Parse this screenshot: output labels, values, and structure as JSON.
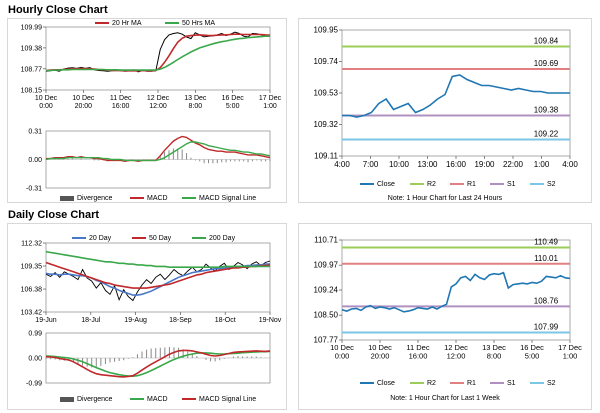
{
  "sections": {
    "hourly_title": "Hourly Close Chart",
    "daily_title": "Daily Close Chart"
  },
  "colors": {
    "close": "#1f77b4",
    "r2": "#9acd5a",
    "r1": "#e08080",
    "s1": "#b090c0",
    "s2": "#7cc6e6",
    "ma_short": "#c0282a",
    "ma_long": "#3aa84a",
    "price": "#000000",
    "ma20": "#4a78c8",
    "ma50": "#c0282a",
    "ma200": "#3aa84a",
    "macd_a": "#c0282a",
    "macd_b": "#3aa84a",
    "divergence": "#888888"
  },
  "chart_data": [
    {
      "id": "hourly_price_ma",
      "type": "line",
      "title": "Hourly Close Chart",
      "legend": [
        "20 Hr MA",
        "50 Hrs MA"
      ],
      "x_ticks": [
        "10 Dec\n0:00",
        "10 Dec\n20:00",
        "11 Dec\n16:00",
        "12 Dec\n12:00",
        "13 Dec\n8:00",
        "16 Dec\n5:00",
        "17 Dec\n1:00"
      ],
      "y_ticks": [
        "109.99",
        "109.38",
        "108.77",
        "108.15"
      ],
      "ylim": [
        108.15,
        109.99
      ],
      "series": [
        {
          "name": "Close",
          "values": [
            108.7,
            108.71,
            108.73,
            108.7,
            108.76,
            108.79,
            108.8,
            108.78,
            108.81,
            108.78,
            108.8,
            108.74,
            108.72,
            108.71,
            108.7,
            108.71,
            108.72,
            108.71,
            108.7,
            108.71,
            108.74,
            108.68,
            108.72,
            108.7,
            108.7,
            108.71,
            109.33,
            109.62,
            109.76,
            109.8,
            109.82,
            109.78,
            109.7,
            109.65,
            109.82,
            109.76,
            109.7,
            109.72,
            109.73,
            109.76,
            109.8,
            109.74,
            109.78,
            109.84,
            109.8,
            109.72,
            109.7,
            109.8,
            109.79,
            109.76,
            109.73,
            109.72
          ]
        },
        {
          "name": "20 Hr MA",
          "values": [
            108.72,
            108.73,
            108.74,
            108.74,
            108.75,
            108.76,
            108.77,
            108.77,
            108.78,
            108.77,
            108.77,
            108.76,
            108.75,
            108.74,
            108.73,
            108.72,
            108.72,
            108.72,
            108.71,
            108.71,
            108.71,
            108.71,
            108.72,
            108.71,
            108.71,
            108.72,
            108.8,
            108.96,
            109.15,
            109.36,
            109.55,
            109.66,
            109.72,
            109.74,
            109.75,
            109.76,
            109.75,
            109.74,
            109.74,
            109.75,
            109.76,
            109.76,
            109.77,
            109.78,
            109.78,
            109.77,
            109.77,
            109.77,
            109.77,
            109.77,
            109.76,
            109.75
          ]
        },
        {
          "name": "50 Hrs MA",
          "values": [
            108.72,
            108.72,
            108.73,
            108.73,
            108.74,
            108.74,
            108.75,
            108.75,
            108.75,
            108.75,
            108.75,
            108.75,
            108.75,
            108.75,
            108.74,
            108.74,
            108.74,
            108.73,
            108.73,
            108.73,
            108.73,
            108.73,
            108.73,
            108.73,
            108.73,
            108.73,
            108.76,
            108.81,
            108.88,
            108.96,
            109.04,
            109.12,
            109.19,
            109.26,
            109.32,
            109.38,
            109.42,
            109.46,
            109.5,
            109.53,
            109.56,
            109.58,
            109.61,
            109.63,
            109.65,
            109.66,
            109.68,
            109.69,
            109.7,
            109.71,
            109.72,
            109.72
          ]
        }
      ]
    },
    {
      "id": "hourly_macd",
      "type": "line",
      "legend": [
        "Divergence",
        "MACD",
        "MACD Signal Line"
      ],
      "y_ticks": [
        "0.31",
        "0.00",
        "-0.31"
      ],
      "ylim": [
        -0.31,
        0.31
      ],
      "series": [
        {
          "name": "MACD",
          "values": [
            0.01,
            0.01,
            0.02,
            0.02,
            0.02,
            0.03,
            0.03,
            0.02,
            0.03,
            0.02,
            0.02,
            0.01,
            0.01,
            0.0,
            -0.01,
            -0.01,
            -0.01,
            -0.01,
            -0.02,
            -0.01,
            -0.01,
            -0.02,
            -0.01,
            -0.01,
            -0.01,
            -0.01,
            0.04,
            0.1,
            0.15,
            0.2,
            0.23,
            0.25,
            0.24,
            0.21,
            0.18,
            0.16,
            0.13,
            0.11,
            0.1,
            0.09,
            0.09,
            0.08,
            0.08,
            0.08,
            0.07,
            0.06,
            0.05,
            0.05,
            0.05,
            0.04,
            0.03,
            0.02
          ]
        },
        {
          "name": "MACD Signal Line",
          "values": [
            0.0,
            0.01,
            0.01,
            0.01,
            0.01,
            0.02,
            0.02,
            0.02,
            0.02,
            0.02,
            0.02,
            0.02,
            0.02,
            0.01,
            0.01,
            0.0,
            0.0,
            0.0,
            -0.01,
            -0.01,
            -0.01,
            -0.01,
            -0.01,
            -0.01,
            -0.01,
            -0.01,
            0.0,
            0.02,
            0.05,
            0.08,
            0.11,
            0.14,
            0.17,
            0.19,
            0.19,
            0.18,
            0.17,
            0.15,
            0.14,
            0.13,
            0.12,
            0.11,
            0.1,
            0.1,
            0.09,
            0.08,
            0.08,
            0.07,
            0.06,
            0.06,
            0.05,
            0.04
          ]
        }
      ]
    },
    {
      "id": "hourly_pivots",
      "type": "line",
      "x_ticks": [
        "4:00",
        "7:00",
        "10:00",
        "13:00",
        "16:00",
        "19:00",
        "22:00",
        "1:00",
        "4:00"
      ],
      "y_ticks": [
        "109.95",
        "109.74",
        "109.53",
        "109.32",
        "109.11"
      ],
      "ylim": [
        109.11,
        109.95
      ],
      "levels": [
        {
          "name": "R2",
          "value": 109.84,
          "label": "109.84"
        },
        {
          "name": "R1",
          "value": 109.69,
          "label": "109.69"
        },
        {
          "name": "S1",
          "value": 109.38,
          "label": "109.38"
        },
        {
          "name": "S2",
          "value": 109.22,
          "label": "109.22"
        }
      ],
      "series": [
        {
          "name": "Close",
          "values": [
            109.38,
            109.38,
            109.37,
            109.38,
            109.4,
            109.46,
            109.49,
            109.42,
            109.44,
            109.46,
            109.4,
            109.42,
            109.45,
            109.49,
            109.52,
            109.64,
            109.65,
            109.62,
            109.6,
            109.58,
            109.58,
            109.57,
            109.56,
            109.55,
            109.56,
            109.55,
            109.54,
            109.54,
            109.53,
            109.53,
            109.53,
            109.53
          ]
        }
      ],
      "legend": [
        "Close",
        "R2",
        "R1",
        "S1",
        "S2"
      ],
      "note": "Note: 1 Hour Chart for Last 24 Hours"
    },
    {
      "id": "daily_price_ma",
      "type": "line",
      "title": "Daily Close Chart",
      "legend": [
        "20 Day",
        "50 Day",
        "200 Day"
      ],
      "x_ticks": [
        "19-Jun",
        "18-Jul",
        "19-Aug",
        "18-Sep",
        "18-Oct",
        "19-Nov"
      ],
      "y_ticks": [
        "112.32",
        "109.35",
        "106.38",
        "103.42"
      ],
      "ylim": [
        103.42,
        112.32
      ],
      "series": [
        {
          "name": "Price",
          "values": [
            108.3,
            108.0,
            108.5,
            107.9,
            108.6,
            108.3,
            108.0,
            107.6,
            108.9,
            107.8,
            107.4,
            106.5,
            107.2,
            106.2,
            105.7,
            106.8,
            105.0,
            106.3,
            105.4,
            104.9,
            106.0,
            106.9,
            107.6,
            107.1,
            107.9,
            108.3,
            107.6,
            108.2,
            108.9,
            108.4,
            108.1,
            108.7,
            109.2,
            108.6,
            108.9,
            109.6,
            109.1,
            108.7,
            109.3,
            109.7,
            108.9,
            109.3,
            109.8,
            109.5,
            109.0,
            109.6,
            109.9,
            109.4,
            109.8,
            110.0
          ]
        },
        {
          "name": "20 Day",
          "values": [
            108.4,
            108.3,
            108.3,
            108.2,
            108.3,
            108.3,
            108.2,
            108.1,
            108.1,
            108.0,
            107.8,
            107.5,
            107.3,
            107.0,
            106.7,
            106.5,
            106.2,
            106.0,
            105.8,
            105.6,
            105.6,
            105.7,
            105.9,
            106.1,
            106.4,
            106.7,
            107.0,
            107.3,
            107.6,
            107.9,
            108.1,
            108.3,
            108.5,
            108.6,
            108.7,
            108.8,
            108.9,
            109.0,
            109.0,
            109.1,
            109.2,
            109.2,
            109.3,
            109.3,
            109.4,
            109.4,
            109.5,
            109.5,
            109.6,
            109.6
          ]
        },
        {
          "name": "50 Day",
          "values": [
            109.8,
            109.6,
            109.4,
            109.2,
            109.0,
            108.8,
            108.6,
            108.4,
            108.2,
            108.0,
            107.8,
            107.6,
            107.4,
            107.2,
            107.1,
            106.9,
            106.8,
            106.7,
            106.6,
            106.5,
            106.5,
            106.5,
            106.5,
            106.6,
            106.7,
            106.8,
            106.9,
            107.0,
            107.2,
            107.4,
            107.6,
            107.8,
            108.0,
            108.2,
            108.3,
            108.5,
            108.6,
            108.7,
            108.8,
            108.9,
            109.0,
            109.1,
            109.1,
            109.2,
            109.2,
            109.3,
            109.3,
            109.4,
            109.4,
            109.5
          ]
        },
        {
          "name": "200 Day",
          "values": [
            111.2,
            111.1,
            111.0,
            110.9,
            110.8,
            110.7,
            110.6,
            110.5,
            110.4,
            110.3,
            110.2,
            110.1,
            110.0,
            109.9,
            109.9,
            109.8,
            109.7,
            109.7,
            109.6,
            109.6,
            109.5,
            109.5,
            109.4,
            109.4,
            109.3,
            109.3,
            109.3,
            109.2,
            109.2,
            109.2,
            109.2,
            109.2,
            109.2,
            109.2,
            109.2,
            109.2,
            109.2,
            109.2,
            109.2,
            109.3,
            109.3,
            109.3,
            109.3,
            109.3,
            109.3,
            109.3,
            109.3,
            109.3,
            109.3,
            109.3
          ]
        }
      ]
    },
    {
      "id": "daily_macd",
      "type": "line",
      "legend": [
        "Divergence",
        "MACD",
        "MACD Signal Line"
      ],
      "y_ticks": [
        "0.99",
        "0.00",
        "-0.99"
      ],
      "ylim": [
        -0.99,
        0.99
      ],
      "series": [
        {
          "name": "MACD",
          "values": [
            0.05,
            0.04,
            0.02,
            -0.02,
            -0.05,
            -0.08,
            -0.15,
            -0.25,
            -0.35,
            -0.45,
            -0.55,
            -0.62,
            -0.66,
            -0.68,
            -0.7,
            -0.72,
            -0.74,
            -0.75,
            -0.73,
            -0.7,
            -0.6,
            -0.48,
            -0.36,
            -0.25,
            -0.15,
            -0.05,
            0.05,
            0.15,
            0.22,
            0.28,
            0.3,
            0.3,
            0.28,
            0.24,
            0.2,
            0.15,
            0.1,
            0.08,
            0.1,
            0.14,
            0.18,
            0.22,
            0.24,
            0.25,
            0.26,
            0.27,
            0.28,
            0.27,
            0.26,
            0.28
          ]
        },
        {
          "name": "MACD Signal Line",
          "values": [
            0.08,
            0.07,
            0.06,
            0.04,
            0.02,
            0.0,
            -0.04,
            -0.09,
            -0.15,
            -0.22,
            -0.3,
            -0.38,
            -0.45,
            -0.52,
            -0.58,
            -0.62,
            -0.66,
            -0.69,
            -0.71,
            -0.72,
            -0.7,
            -0.65,
            -0.58,
            -0.5,
            -0.41,
            -0.32,
            -0.23,
            -0.14,
            -0.06,
            0.01,
            0.07,
            0.12,
            0.16,
            0.19,
            0.2,
            0.2,
            0.19,
            0.17,
            0.16,
            0.16,
            0.17,
            0.18,
            0.19,
            0.21,
            0.22,
            0.23,
            0.24,
            0.25,
            0.25,
            0.26
          ]
        }
      ]
    },
    {
      "id": "daily_pivots",
      "type": "line",
      "x_ticks": [
        "10 Dec\n0:00",
        "10 Dec\n20:00",
        "11 Dec\n16:00",
        "12 Dec\n12:00",
        "13 Dec\n8:00",
        "16 Dec\n5:00",
        "17 Dec\n1:00"
      ],
      "y_ticks": [
        "110.71",
        "109.97",
        "109.24",
        "108.50",
        "107.77"
      ],
      "ylim": [
        107.77,
        110.71
      ],
      "levels": [
        {
          "name": "R2",
          "value": 110.49,
          "label": "110.49"
        },
        {
          "name": "R1",
          "value": 110.01,
          "label": "110.01"
        },
        {
          "name": "S1",
          "value": 108.76,
          "label": "108.76"
        },
        {
          "name": "S2",
          "value": 107.99,
          "label": "107.99"
        }
      ],
      "series": [
        {
          "name": "Close",
          "values": [
            108.66,
            108.62,
            108.68,
            108.7,
            108.64,
            108.74,
            108.78,
            108.7,
            108.74,
            108.72,
            108.68,
            108.72,
            108.66,
            108.6,
            108.62,
            108.66,
            108.72,
            108.7,
            108.68,
            108.74,
            108.68,
            108.76,
            108.82,
            109.33,
            109.42,
            109.6,
            109.64,
            109.52,
            109.7,
            109.6,
            109.55,
            109.68,
            109.72,
            109.7,
            109.75,
            109.3,
            109.4,
            109.42,
            109.44,
            109.42,
            109.46,
            109.44,
            109.5,
            109.64,
            109.62,
            109.6,
            109.66,
            109.6,
            109.58
          ]
        }
      ],
      "legend": [
        "Close",
        "R2",
        "R1",
        "S1",
        "S2"
      ],
      "note": "Note: 1 Hour Chart for Last 1 Week"
    }
  ]
}
